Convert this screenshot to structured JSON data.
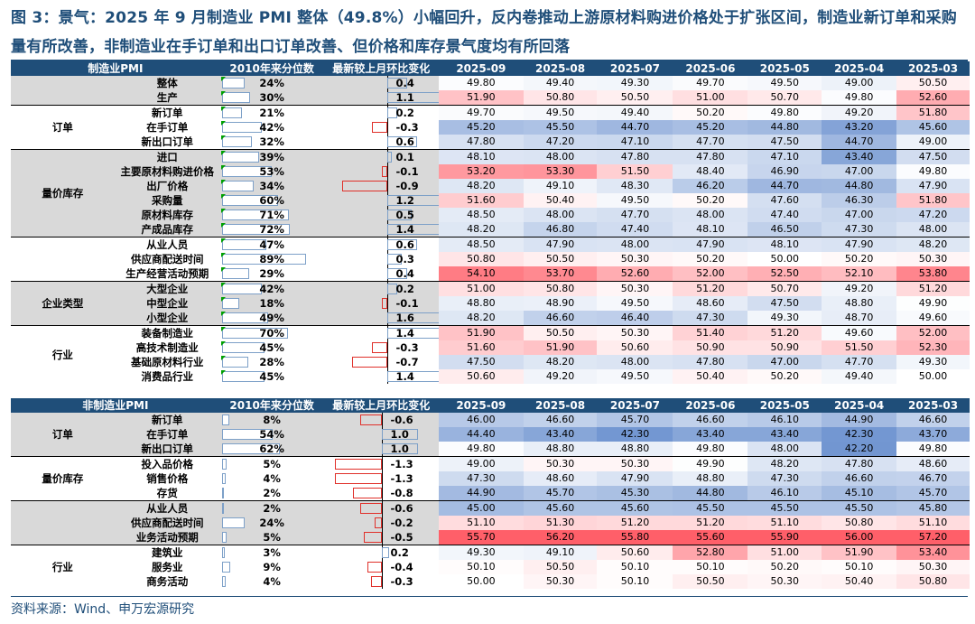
{
  "title": "图 3：景气：2025 年 9 月制造业 PMI 整体（49.8%）小幅回升，反内卷推动上游原材料购进价格处于扩张区间，制造业新订单和采购量有所改善，非制造业在手订单和出口订单改善、但价格和库存景气度均有所回落",
  "source": "资料来源：Wind、申万宏源研究",
  "colors": {
    "header_bg": "#1f4e79",
    "shade": "#d9d9d9",
    "pos_bar": "#7da0c8",
    "neg_bar": "#e0302a",
    "heat_high": "#f05a64",
    "heat_low": "#6f93d0"
  },
  "tables": [
    {
      "name": "manufacturing",
      "headers": [
        "制造业PMI",
        "2010年来分位数",
        "最新较上月环比变化",
        "2025-09",
        "2025-08",
        "2025-07",
        "2025-06",
        "2025-05",
        "2025-04",
        "2025-03"
      ],
      "rows": [
        {
          "group": "",
          "item": "整体",
          "pct": "24%",
          "chg": "0.4",
          "vals": [
            "49.80",
            "49.40",
            "49.30",
            "49.70",
            "49.50",
            "49.00",
            "50.50"
          ]
        },
        {
          "group": "",
          "item": "生产",
          "pct": "30%",
          "chg": "1.1",
          "vals": [
            "51.90",
            "50.80",
            "50.50",
            "51.00",
            "50.70",
            "49.80",
            "52.60"
          ]
        },
        {
          "group": "订单",
          "item": "新订单",
          "pct": "21%",
          "chg": "0.2",
          "vals": [
            "49.70",
            "49.50",
            "49.40",
            "50.20",
            "49.80",
            "49.20",
            "51.80"
          ]
        },
        {
          "group": "订单",
          "item": "在手订单",
          "pct": "42%",
          "chg": "-0.3",
          "vals": [
            "45.20",
            "45.50",
            "44.70",
            "45.20",
            "44.80",
            "43.20",
            "45.60"
          ]
        },
        {
          "group": "订单",
          "item": "新出口订单",
          "pct": "32%",
          "chg": "0.6",
          "vals": [
            "47.80",
            "47.20",
            "47.10",
            "47.70",
            "47.50",
            "44.70",
            "49.00"
          ]
        },
        {
          "group": "量价库存",
          "item": "进口",
          "pct": "39%",
          "chg": "0.1",
          "vals": [
            "48.10",
            "48.00",
            "47.80",
            "47.80",
            "47.10",
            "43.40",
            "47.50"
          ]
        },
        {
          "group": "量价库存",
          "item": "主要原材料购进价格",
          "pct": "53%",
          "chg": "-0.1",
          "vals": [
            "53.20",
            "53.30",
            "51.50",
            "48.40",
            "46.90",
            "47.00",
            "49.80"
          ]
        },
        {
          "group": "量价库存",
          "item": "出厂价格",
          "pct": "34%",
          "chg": "-0.9",
          "vals": [
            "48.20",
            "49.10",
            "48.30",
            "46.20",
            "44.70",
            "44.80",
            "47.90"
          ]
        },
        {
          "group": "量价库存",
          "item": "采购量",
          "pct": "60%",
          "chg": "1.2",
          "vals": [
            "51.60",
            "50.40",
            "49.50",
            "50.20",
            "47.60",
            "46.30",
            "51.80"
          ]
        },
        {
          "group": "量价库存",
          "item": "原材料库存",
          "pct": "71%",
          "chg": "0.5",
          "vals": [
            "48.50",
            "48.00",
            "47.70",
            "48.00",
            "47.40",
            "47.00",
            "47.20"
          ]
        },
        {
          "group": "量价库存",
          "item": "产成品库存",
          "pct": "72%",
          "chg": "1.4",
          "vals": [
            "48.20",
            "46.80",
            "47.40",
            "48.10",
            "46.50",
            "47.30",
            "48.00"
          ]
        },
        {
          "group": "",
          "item": "从业人员",
          "pct": "47%",
          "chg": "0.6",
          "vals": [
            "48.50",
            "47.90",
            "48.00",
            "47.90",
            "48.10",
            "47.90",
            "48.20"
          ]
        },
        {
          "group": "",
          "item": "供应商配送时间",
          "pct": "89%",
          "chg": "0.3",
          "vals": [
            "50.80",
            "50.50",
            "50.30",
            "50.20",
            "50.00",
            "50.20",
            "50.30"
          ]
        },
        {
          "group": "",
          "item": "生产经营活动预期",
          "pct": "29%",
          "chg": "0.4",
          "vals": [
            "54.10",
            "53.70",
            "52.60",
            "52.00",
            "52.50",
            "52.10",
            "53.80"
          ]
        },
        {
          "group": "企业类型",
          "item": "大型企业",
          "pct": "42%",
          "chg": "0.2",
          "vals": [
            "51.00",
            "50.80",
            "50.30",
            "51.20",
            "50.70",
            "49.20",
            "51.20"
          ]
        },
        {
          "group": "企业类型",
          "item": "中型企业",
          "pct": "18%",
          "chg": "-0.1",
          "vals": [
            "48.80",
            "48.90",
            "49.50",
            "48.60",
            "47.50",
            "48.80",
            "49.90"
          ]
        },
        {
          "group": "企业类型",
          "item": "小型企业",
          "pct": "49%",
          "chg": "1.6",
          "vals": [
            "48.20",
            "46.60",
            "46.40",
            "47.30",
            "49.30",
            "48.70",
            "49.60"
          ]
        },
        {
          "group": "行业",
          "item": "装备制造业",
          "pct": "70%",
          "chg": "1.4",
          "vals": [
            "51.90",
            "50.50",
            "50.30",
            "51.40",
            "51.20",
            "49.60",
            "52.00"
          ]
        },
        {
          "group": "行业",
          "item": "高技术制造业",
          "pct": "45%",
          "chg": "-0.3",
          "vals": [
            "51.60",
            "51.90",
            "50.60",
            "50.90",
            "50.90",
            "51.50",
            "52.30"
          ]
        },
        {
          "group": "行业",
          "item": "基础原材料行业",
          "pct": "28%",
          "chg": "-0.7",
          "vals": [
            "47.50",
            "48.20",
            "48.00",
            "47.80",
            "47.00",
            "47.70",
            "49.30"
          ]
        },
        {
          "group": "行业",
          "item": "消费品行业",
          "pct": "45%",
          "chg": "1.4",
          "vals": [
            "50.60",
            "49.20",
            "49.50",
            "50.40",
            "50.20",
            "49.40",
            "50.00"
          ]
        }
      ]
    },
    {
      "name": "non-manufacturing",
      "headers": [
        "非制造业PMI",
        "2010年来分位数",
        "最新较上月环比变化",
        "2025-09",
        "2025-08",
        "2025-07",
        "2025-06",
        "2025-05",
        "2025-04",
        "2025-03"
      ],
      "rows": [
        {
          "group": "订单",
          "item": "新订单",
          "pct": "8%",
          "chg": "-0.6",
          "vals": [
            "46.00",
            "46.60",
            "45.70",
            "46.60",
            "46.10",
            "44.90",
            "46.60"
          ]
        },
        {
          "group": "订单",
          "item": "在手订单",
          "pct": "54%",
          "chg": "1.0",
          "vals": [
            "44.40",
            "43.40",
            "42.30",
            "43.40",
            "43.40",
            "42.30",
            "43.70"
          ]
        },
        {
          "group": "订单",
          "item": "新出口订单",
          "pct": "62%",
          "chg": "1.0",
          "vals": [
            "49.80",
            "48.80",
            "48.80",
            "49.80",
            "48.00",
            "42.20",
            "49.80"
          ]
        },
        {
          "group": "量价库存",
          "item": "投入品价格",
          "pct": "5%",
          "chg": "-1.3",
          "vals": [
            "49.00",
            "50.30",
            "50.30",
            "49.90",
            "48.20",
            "47.80",
            "48.60"
          ]
        },
        {
          "group": "量价库存",
          "item": "销售价格",
          "pct": "4%",
          "chg": "-1.3",
          "vals": [
            "47.30",
            "48.60",
            "47.90",
            "48.80",
            "47.30",
            "46.60",
            "46.70"
          ]
        },
        {
          "group": "量价库存",
          "item": "存货",
          "pct": "2%",
          "chg": "-0.8",
          "vals": [
            "44.90",
            "45.70",
            "45.30",
            "44.80",
            "46.10",
            "45.10",
            "45.70"
          ]
        },
        {
          "group": "",
          "item": "从业人员",
          "pct": "2%",
          "chg": "-0.6",
          "vals": [
            "45.00",
            "45.60",
            "45.60",
            "45.50",
            "45.50",
            "45.50",
            "45.80"
          ]
        },
        {
          "group": "",
          "item": "供应商配送时间",
          "pct": "24%",
          "chg": "-0.2",
          "vals": [
            "51.10",
            "51.30",
            "51.20",
            "51.20",
            "51.10",
            "50.80",
            "51.10"
          ]
        },
        {
          "group": "",
          "item": "业务活动预期",
          "pct": "5%",
          "chg": "-0.5",
          "vals": [
            "55.70",
            "56.20",
            "55.80",
            "55.60",
            "55.90",
            "56.00",
            "57.20"
          ]
        },
        {
          "group": "行业",
          "item": "建筑业",
          "pct": "3%",
          "chg": "0.2",
          "vals": [
            "49.30",
            "49.10",
            "50.60",
            "52.80",
            "51.00",
            "51.90",
            "53.40"
          ]
        },
        {
          "group": "行业",
          "item": "服务业",
          "pct": "9%",
          "chg": "-0.4",
          "vals": [
            "50.10",
            "50.50",
            "50.10",
            "50.10",
            "50.20",
            "50.10",
            "50.30"
          ]
        },
        {
          "group": "行业",
          "item": "商务活动",
          "pct": "4%",
          "chg": "-0.3",
          "vals": [
            "50.00",
            "50.30",
            "50.10",
            "50.50",
            "50.30",
            "50.40",
            "50.80"
          ]
        }
      ]
    }
  ]
}
